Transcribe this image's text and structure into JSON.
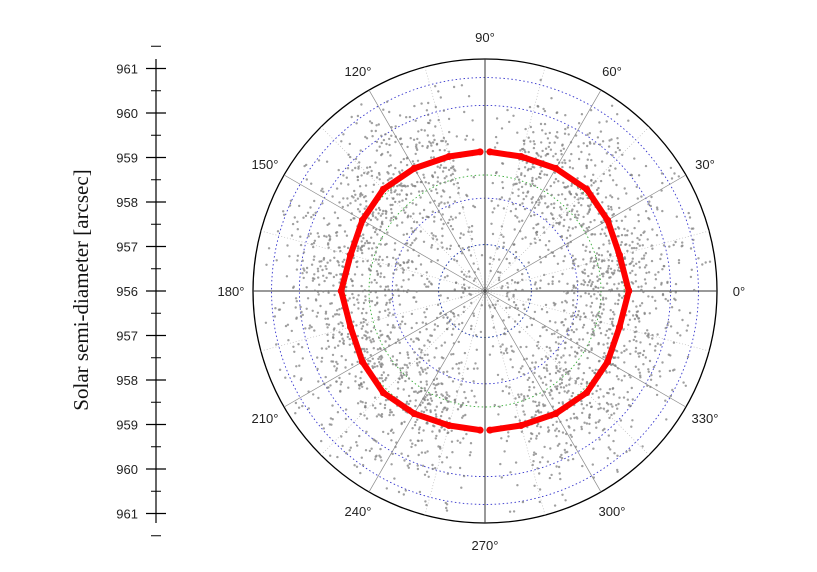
{
  "chart_data": {
    "type": "scatter",
    "coordinate_system": "polar",
    "ylabel": "Solar semi-diameter [arcsec]",
    "radial_axis_ticks": [
      "961",
      "960",
      "959",
      "958",
      "957",
      "956",
      "957",
      "958",
      "959",
      "960",
      "961"
    ],
    "radial_range": [
      956,
      961
    ],
    "angle_ticks": [
      "0°",
      "30°",
      "60°",
      "90°",
      "120°",
      "150°",
      "180°",
      "210°",
      "240°",
      "270°",
      "300°",
      "330°"
    ],
    "angle_unit": "degrees",
    "grid": true,
    "series": [
      {
        "kind": "scatter",
        "color": "#808080",
        "description_values": {
          "radius_range": [
            956.2,
            961
          ],
          "dense_band": [
            957.5,
            960.5
          ],
          "gap_angles": [
            90,
            270
          ]
        }
      },
      {
        "kind": "line",
        "color": "#ff0000",
        "points": [
          {
            "angle": 0,
            "r": 959.1
          },
          {
            "angle": 15,
            "r": 959.0
          },
          {
            "angle": 30,
            "r": 959.05
          },
          {
            "angle": 45,
            "r": 959.1
          },
          {
            "angle": 60,
            "r": 959.05
          },
          {
            "angle": 75,
            "r": 959.0
          },
          {
            "angle": 88,
            "r": 959.0
          },
          {
            "angle": 92,
            "r": 959.0
          },
          {
            "angle": 105,
            "r": 959.0
          },
          {
            "angle": 120,
            "r": 959.05
          },
          {
            "angle": 135,
            "r": 959.1
          },
          {
            "angle": 150,
            "r": 959.05
          },
          {
            "angle": 165,
            "r": 959.0
          },
          {
            "angle": 180,
            "r": 959.1
          },
          {
            "angle": 195,
            "r": 959.0
          },
          {
            "angle": 210,
            "r": 959.05
          },
          {
            "angle": 225,
            "r": 959.1
          },
          {
            "angle": 240,
            "r": 959.05
          },
          {
            "angle": 255,
            "r": 959.0
          },
          {
            "angle": 268,
            "r": 959.0
          },
          {
            "angle": 272,
            "r": 959.0
          },
          {
            "angle": 285,
            "r": 959.0
          },
          {
            "angle": 300,
            "r": 959.05
          },
          {
            "angle": 315,
            "r": 959.1
          },
          {
            "angle": 330,
            "r": 959.05
          },
          {
            "angle": 345,
            "r": 959.0
          }
        ]
      }
    ],
    "colors": {
      "grid_blue": "#3333cc",
      "grid_green": "#33aa33",
      "grid_gray": "#bbbbbb",
      "axis": "#000000"
    }
  }
}
